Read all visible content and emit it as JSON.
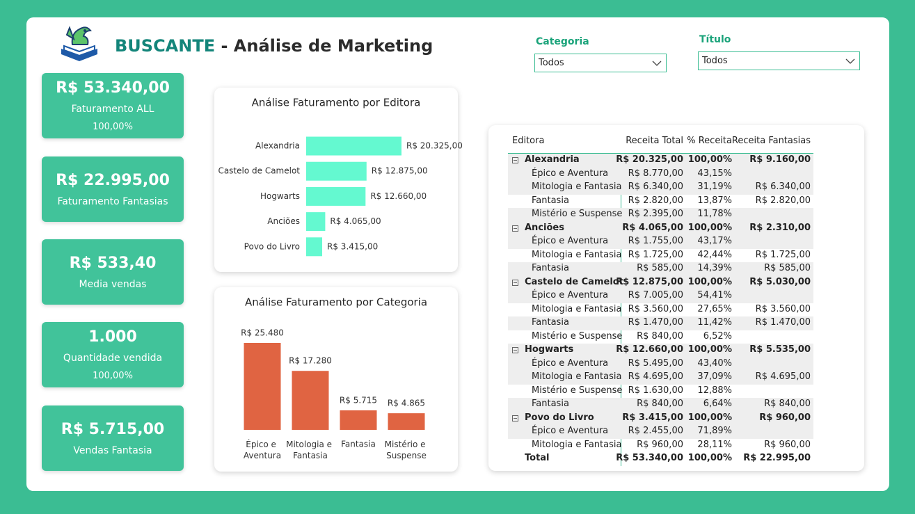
{
  "header": {
    "brand": "BUSCANTE",
    "title": "- Análise de Marketing"
  },
  "filters": [
    {
      "label": "Categoria",
      "value": "Todos"
    },
    {
      "label": "Título",
      "value": "Todos"
    }
  ],
  "cards": [
    {
      "value": "R$ 53.340,00",
      "label": "Faturamento ALL",
      "sub": "100,00%"
    },
    {
      "value": "R$ 22.995,00",
      "label": "Faturamento Fantasias"
    },
    {
      "value": "R$ 533,40",
      "label": "Media vendas"
    },
    {
      "value": "1.000",
      "label": "Quantidade vendida",
      "sub": "100,00%"
    },
    {
      "value": "R$ 5.715,00",
      "label": "Vendas Fantasia"
    }
  ],
  "chart_data": [
    {
      "type": "bar",
      "orientation": "horizontal",
      "title": "Análise Faturamento por Editora",
      "categories": [
        "Alexandria",
        "Castelo de Camelot",
        "Hogwarts",
        "Anciões",
        "Povo do Livro"
      ],
      "values": [
        20325,
        12875,
        12660,
        4065,
        3415
      ],
      "value_labels": [
        "R$ 20.325,00",
        "R$ 12.875,00",
        "R$ 12.660,00",
        "R$ 4.065,00",
        "R$ 3.415,00"
      ],
      "color": "#64f9d0"
    },
    {
      "type": "bar",
      "orientation": "vertical",
      "title": "Análise Faturamento por Categoria",
      "categories": [
        "Épico e Aventura",
        "Mitologia e Fantasia",
        "Fantasia",
        "Mistério e Suspense"
      ],
      "values": [
        25480,
        17280,
        5715,
        4865
      ],
      "value_labels": [
        "R$ 25.480",
        "R$ 17.280",
        "R$ 5.715",
        "R$ 4.865"
      ],
      "color": "#e06442"
    }
  ],
  "table": {
    "columns": [
      "Editora",
      "Receita Total",
      "% Receita",
      "Receita Fantasias"
    ],
    "groups": [
      {
        "label": "Alexandria",
        "receita": "R$ 20.325,00",
        "pct": "100,00%",
        "fantasias": "R$ 9.160,00",
        "children": [
          {
            "label": "Épico e Aventura",
            "receita": "R$ 8.770,00",
            "pct": "43,15%"
          },
          {
            "label": "Mitologia e Fantasia",
            "receita": "R$ 6.340,00",
            "pct": "31,19%",
            "fantasias": "R$ 6.340,00"
          },
          {
            "label": "Fantasia",
            "receita": "R$ 2.820,00",
            "pct": "13,87%",
            "fantasias": "R$ 2.820,00"
          },
          {
            "label": "Mistério e Suspense",
            "receita": "R$ 2.395,00",
            "pct": "11,78%"
          }
        ]
      },
      {
        "label": "Anciões",
        "receita": "R$ 4.065,00",
        "pct": "100,00%",
        "fantasias": "R$ 2.310,00",
        "children": [
          {
            "label": "Épico e Aventura",
            "receita": "R$ 1.755,00",
            "pct": "43,17%"
          },
          {
            "label": "Mitologia e Fantasia",
            "receita": "R$ 1.725,00",
            "pct": "42,44%",
            "fantasias": "R$ 1.725,00"
          },
          {
            "label": "Fantasia",
            "receita": "R$ 585,00",
            "pct": "14,39%",
            "fantasias": "R$ 585,00"
          }
        ]
      },
      {
        "label": "Castelo de Camelot",
        "receita": "R$ 12.875,00",
        "pct": "100,00%",
        "fantasias": "R$ 5.030,00",
        "children": [
          {
            "label": "Épico e Aventura",
            "receita": "R$ 7.005,00",
            "pct": "54,41%"
          },
          {
            "label": "Mitologia e Fantasia",
            "receita": "R$ 3.560,00",
            "pct": "27,65%",
            "fantasias": "R$ 3.560,00"
          },
          {
            "label": "Fantasia",
            "receita": "R$ 1.470,00",
            "pct": "11,42%",
            "fantasias": "R$ 1.470,00"
          },
          {
            "label": "Mistério e Suspense",
            "receita": "R$ 840,00",
            "pct": "6,52%"
          }
        ]
      },
      {
        "label": "Hogwarts",
        "receita": "R$ 12.660,00",
        "pct": "100,00%",
        "fantasias": "R$ 5.535,00",
        "children": [
          {
            "label": "Épico e Aventura",
            "receita": "R$ 5.495,00",
            "pct": "43,40%"
          },
          {
            "label": "Mitologia e Fantasia",
            "receita": "R$ 4.695,00",
            "pct": "37,09%",
            "fantasias": "R$ 4.695,00"
          },
          {
            "label": "Mistério e Suspense",
            "receita": "R$ 1.630,00",
            "pct": "12,88%"
          },
          {
            "label": "Fantasia",
            "receita": "R$ 840,00",
            "pct": "6,64%",
            "fantasias": "R$ 840,00"
          }
        ]
      },
      {
        "label": "Povo do Livro",
        "receita": "R$ 3.415,00",
        "pct": "100,00%",
        "fantasias": "R$ 960,00",
        "children": [
          {
            "label": "Épico e Aventura",
            "receita": "R$ 2.455,00",
            "pct": "71,89%"
          },
          {
            "label": "Mitologia e Fantasia",
            "receita": "R$ 960,00",
            "pct": "28,11%",
            "fantasias": "R$ 960,00"
          }
        ]
      }
    ],
    "total": {
      "label": "Total",
      "receita": "R$ 53.340,00",
      "pct": "100,00%",
      "fantasias": "R$ 22.995,00"
    }
  }
}
